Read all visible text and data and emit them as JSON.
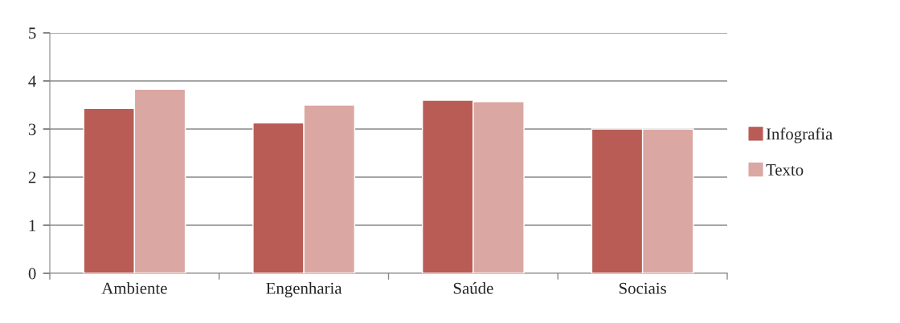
{
  "chart_data": {
    "type": "bar",
    "categories": [
      "Ambiente",
      "Engenharia",
      "Saúde",
      "Sociais"
    ],
    "series": [
      {
        "name": "Infografia",
        "color": "#b85c55",
        "values": [
          3.43,
          3.13,
          3.6,
          3.0
        ]
      },
      {
        "name": "Texto",
        "color": "#dba7a3",
        "values": [
          3.83,
          3.5,
          3.57,
          3.0
        ]
      }
    ],
    "ylim": [
      0,
      5
    ],
    "yticks": [
      0,
      1,
      2,
      3,
      4,
      5
    ],
    "grid": "y",
    "legend": "right"
  }
}
